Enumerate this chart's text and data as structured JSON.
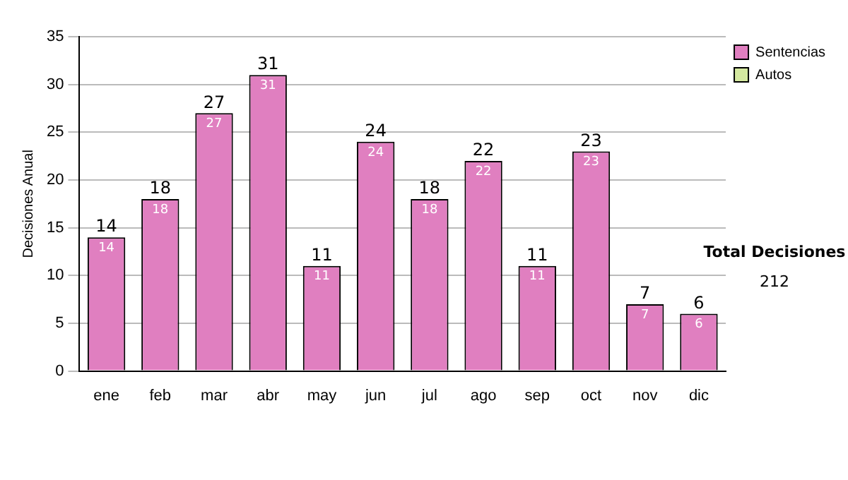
{
  "chart_data": {
    "type": "bar",
    "ylabel": "Decisiones Anual",
    "categories": [
      "ene",
      "feb",
      "mar",
      "abr",
      "may",
      "jun",
      "jul",
      "ago",
      "sep",
      "oct",
      "nov",
      "dic"
    ],
    "series": [
      {
        "name": "Sentencias",
        "color": "#e07fc0",
        "values": [
          14,
          18,
          27,
          31,
          11,
          24,
          18,
          22,
          11,
          23,
          7,
          6
        ],
        "value_labels": [
          "14",
          "18",
          "27",
          "31",
          "11",
          "24",
          "18",
          "22",
          "11",
          "23",
          "7",
          "6"
        ]
      },
      {
        "name": "Autos",
        "color": "#d4e8a0",
        "values": [
          0,
          0,
          0,
          0,
          0,
          0,
          0,
          0,
          0,
          0,
          0,
          0
        ]
      }
    ],
    "stacked": true,
    "totals": [
      "14",
      "18",
      "27",
      "31",
      "11",
      "24",
      "18",
      "22",
      "11",
      "23",
      "7",
      "6"
    ],
    "ylim": [
      0,
      35
    ],
    "yticks": [
      0,
      5,
      10,
      15,
      20,
      25,
      30,
      35
    ],
    "grid": "y",
    "legend": "right",
    "annotations": [
      "Total Decisiones",
      "212"
    ]
  }
}
